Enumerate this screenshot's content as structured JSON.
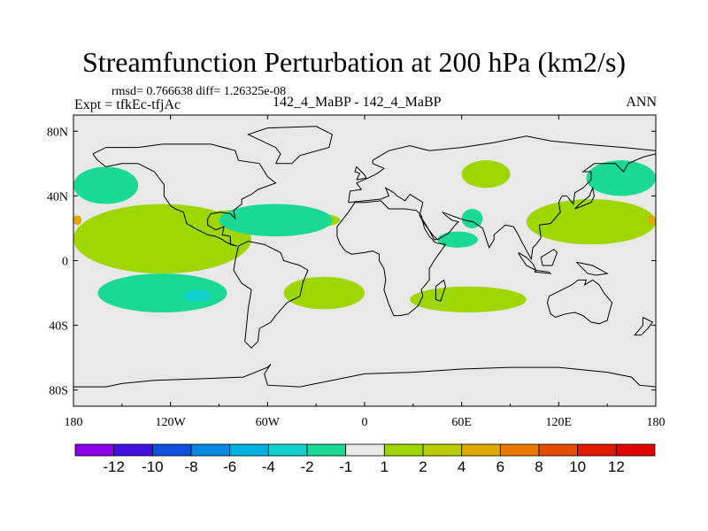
{
  "title": "Streamfunction Perturbation at 200 hPa (km2/s)",
  "stats": "rmsd= 0.766638 diff= 1.26325e-08",
  "left_label": "Expt = tfkEc-tfjAc",
  "center_label": "142_4_MaBP - 142_4_MaBP",
  "right_label": "ANN",
  "colors": {
    "background": "#e8e8e8",
    "bin_neg1": "#1ad994",
    "bin_neg2": "#10c9c9",
    "bin_pos1": "#9ed600",
    "bin_pos3": "#e8a200",
    "coast": "#000000"
  },
  "chart_data": {
    "type": "heatmap",
    "projection": "cylindrical-equidistant",
    "xlim": [
      -180,
      180
    ],
    "ylim": [
      -90,
      90
    ],
    "x_ticks": [
      -180,
      -120,
      -60,
      0,
      60,
      120,
      180
    ],
    "x_tick_labels": [
      "180",
      "120W",
      "60W",
      "0",
      "60E",
      "120E",
      "180"
    ],
    "y_ticks": [
      80,
      40,
      0,
      -40,
      -80
    ],
    "y_tick_labels": [
      "80N",
      "40N",
      "0",
      "40S",
      "80S"
    ],
    "colorbar": {
      "levels": [
        -12,
        -10,
        -8,
        -6,
        -4,
        -2,
        -1,
        1,
        2,
        4,
        6,
        8,
        10,
        12
      ],
      "labels": [
        "-12",
        "-10",
        "-8",
        "-6",
        "-4",
        "-2",
        "-1",
        "1",
        "2",
        "4",
        "6",
        "8",
        "10",
        "12"
      ],
      "colors": [
        "#8b00e8",
        "#4010e0",
        "#1050e0",
        "#0888e0",
        "#00b0e0",
        "#10d0d0",
        "#1ad994",
        "#e8e8e8",
        "#9ed600",
        "#b8cc00",
        "#e0a800",
        "#e87a00",
        "#e44c00",
        "#e01a00",
        "#e00000"
      ]
    },
    "features": [
      {
        "sign": "negative",
        "level_min": -2,
        "level_max": -1,
        "lon": [
          -180,
          -140
        ],
        "lat": [
          35,
          58
        ]
      },
      {
        "sign": "positive",
        "level_min": 1,
        "level_max": 2,
        "lon": [
          -180,
          -70
        ],
        "lat": [
          -8,
          35
        ]
      },
      {
        "sign": "positive",
        "level_min": 1,
        "level_max": 2,
        "lon": [
          -110,
          -15
        ],
        "lat": [
          18,
          32
        ]
      },
      {
        "sign": "negative",
        "level_min": -2,
        "level_max": -1,
        "lon": [
          -90,
          -20
        ],
        "lat": [
          15,
          35
        ]
      },
      {
        "sign": "negative",
        "level_min": -2,
        "level_max": -1,
        "lon": [
          -165,
          -85
        ],
        "lat": [
          -32,
          -8
        ]
      },
      {
        "sign": "negative",
        "level_min": -4,
        "level_max": -2,
        "lon": [
          -112,
          -95
        ],
        "lat": [
          -25,
          -18
        ]
      },
      {
        "sign": "positive",
        "level_min": 1,
        "level_max": 2,
        "lon": [
          -50,
          0
        ],
        "lat": [
          -30,
          -10
        ]
      },
      {
        "sign": "positive",
        "level_min": 1,
        "level_max": 2,
        "lon": [
          28,
          100
        ],
        "lat": [
          -32,
          -16
        ]
      },
      {
        "sign": "positive",
        "level_min": 1,
        "level_max": 2,
        "lon": [
          60,
          90
        ],
        "lat": [
          45,
          62
        ]
      },
      {
        "sign": "negative",
        "level_min": -2,
        "level_max": -1,
        "lon": [
          45,
          70
        ],
        "lat": [
          8,
          18
        ]
      },
      {
        "sign": "negative",
        "level_min": -2,
        "level_max": -1,
        "lon": [
          60,
          73
        ],
        "lat": [
          20,
          32
        ]
      },
      {
        "sign": "negative",
        "level_min": -2,
        "level_max": -1,
        "lon": [
          137,
          180
        ],
        "lat": [
          40,
          62
        ]
      },
      {
        "sign": "positive",
        "level_min": 1,
        "level_max": 2,
        "lon": [
          100,
          180
        ],
        "lat": [
          10,
          38
        ]
      },
      {
        "sign": "positive",
        "level_min": 4,
        "level_max": 6,
        "lon": [
          -180,
          -175
        ],
        "lat": [
          22,
          28
        ]
      },
      {
        "sign": "positive",
        "level_min": 4,
        "level_max": 6,
        "lon": [
          175,
          180
        ],
        "lat": [
          22,
          28
        ]
      }
    ]
  }
}
